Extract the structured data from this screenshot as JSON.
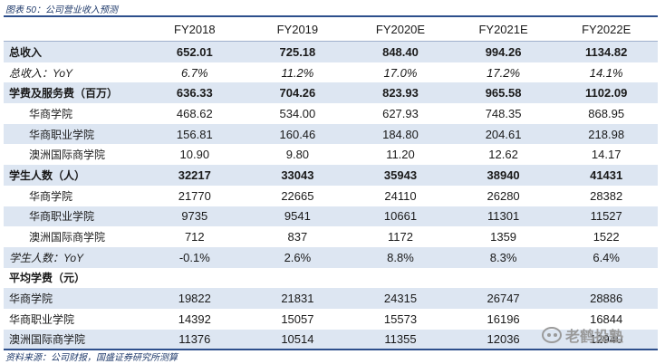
{
  "caption": "图表 50：公司营业收入预测",
  "source": "资料来源：公司财报，国盛证券研究所测算",
  "watermark": "老鹤投塾",
  "columns": [
    "",
    "FY2018",
    "FY2019",
    "FY2020E",
    "FY2021E",
    "FY2022E"
  ],
  "rows": [
    {
      "label": "总收入",
      "values": [
        "652.01",
        "725.18",
        "848.40",
        "994.26",
        "1134.82"
      ],
      "style": "bold",
      "shaded": true
    },
    {
      "label": "总收入：YoY",
      "values": [
        "6.7%",
        "11.2%",
        "17.0%",
        "17.2%",
        "14.1%"
      ],
      "style": "italic",
      "shaded": false
    },
    {
      "label": "学费及服务费（百万）",
      "values": [
        "636.33",
        "704.26",
        "823.93",
        "965.58",
        "1102.09"
      ],
      "style": "bold",
      "shaded": true
    },
    {
      "label": "华商学院",
      "values": [
        "468.62",
        "534.00",
        "627.93",
        "748.35",
        "868.95"
      ],
      "style": "indent",
      "shaded": false
    },
    {
      "label": "华商职业学院",
      "values": [
        "156.81",
        "160.46",
        "184.80",
        "204.61",
        "218.98"
      ],
      "style": "indent",
      "shaded": true
    },
    {
      "label": "澳洲国际商学院",
      "values": [
        "10.90",
        "9.80",
        "11.20",
        "12.62",
        "14.17"
      ],
      "style": "indent",
      "shaded": false
    },
    {
      "label": "学生人数（人）",
      "values": [
        "32217",
        "33043",
        "35943",
        "38940",
        "41431"
      ],
      "style": "bold",
      "shaded": true
    },
    {
      "label": "华商学院",
      "values": [
        "21770",
        "22665",
        "24110",
        "26280",
        "28382"
      ],
      "style": "indent",
      "shaded": false
    },
    {
      "label": "华商职业学院",
      "values": [
        "9735",
        "9541",
        "10661",
        "11301",
        "11527"
      ],
      "style": "indent",
      "shaded": true
    },
    {
      "label": "澳洲国际商学院",
      "values": [
        "712",
        "837",
        "1172",
        "1359",
        "1522"
      ],
      "style": "indent",
      "shaded": false
    },
    {
      "label": "学生人数：YoY",
      "values": [
        "-0.1%",
        "2.6%",
        "8.8%",
        "8.3%",
        "6.4%"
      ],
      "style": "italic-mixed",
      "shaded": true
    },
    {
      "label": "平均学费（元）",
      "values": [
        "",
        "",
        "",
        "",
        ""
      ],
      "style": "bold",
      "shaded": false
    },
    {
      "label": "华商学院",
      "values": [
        "19822",
        "21831",
        "24315",
        "26747",
        "28886"
      ],
      "style": "plain",
      "shaded": true
    },
    {
      "label": "华商职业学院",
      "values": [
        "14392",
        "15057",
        "15573",
        "16196",
        "16844"
      ],
      "style": "plain",
      "shaded": false
    },
    {
      "label": "澳洲国际商学院",
      "values": [
        "11376",
        "10514",
        "11355",
        "12036",
        "12940"
      ],
      "style": "plain",
      "shaded": true
    }
  ]
}
